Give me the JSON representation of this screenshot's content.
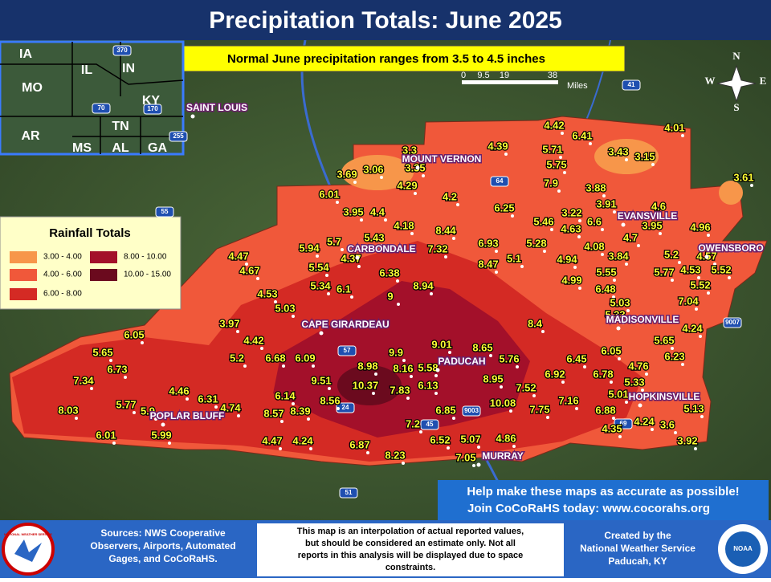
{
  "header": {
    "title": "Precipitation Totals: June 2025",
    "subtitle": "Normal June precipitation  ranges from 3.5 to 4.5 inches"
  },
  "inset_states": [
    "IA",
    "IL",
    "IN",
    "MO",
    "KY",
    "AR",
    "TN",
    "MS",
    "AL",
    "GA"
  ],
  "highways": [
    "370",
    "70",
    "170",
    "255",
    "55",
    "64",
    "57",
    "24",
    "41",
    "9003",
    "9007",
    "45",
    "51",
    "69"
  ],
  "scale_bar": {
    "ticks": [
      "0",
      "9.5",
      "19",
      "38"
    ],
    "unit": "Miles"
  },
  "compass": [
    "N",
    "W",
    "E",
    "S"
  ],
  "legend": {
    "title": "Rainfall Totals",
    "items": [
      {
        "label": "3.00 - 4.00",
        "color": "#f7964a"
      },
      {
        "label": "4.00 - 6.00",
        "color": "#f0583a"
      },
      {
        "label": "6.00 - 8.00",
        "color": "#d42a24"
      },
      {
        "label": "8.00 - 10.00",
        "color": "#a3102a"
      },
      {
        "label": "10.00 - 15.00",
        "color": "#6b0a1e"
      }
    ]
  },
  "cities": [
    "SAINT LOUIS",
    "MOUNT VERNON",
    "EVANSVILLE",
    "OWENSBORO",
    "CARBONDALE",
    "CAPE GIRARDEAU",
    "MADISONVILLE",
    "PADUCAH",
    "HOPKINSVILLE",
    "POPLAR BLUFF",
    "MURRAY"
  ],
  "stations": [
    3.3,
    3.06,
    3.35,
    3.69,
    4.39,
    4.42,
    6.41,
    5.71,
    5.75,
    4.01,
    3.43,
    3.15,
    3.61,
    7.9,
    3.88,
    6.01,
    4.29,
    4.2,
    6.25,
    3.91,
    3.95,
    4.4,
    4.18,
    8.44,
    5.46,
    3.22,
    6.6,
    4.6,
    4.96,
    4.63,
    3.95,
    5.43,
    5.7,
    7.32,
    6.93,
    5.28,
    4.08,
    4.7,
    5.94,
    4.37,
    8.47,
    5.1,
    4.94,
    3.84,
    5.2,
    4.57,
    4.47,
    5.54,
    6.38,
    4.53,
    5.52,
    4.67,
    8.94,
    5.55,
    5.77,
    4.99,
    5.34,
    6.1,
    9,
    6.48,
    5.52,
    4.53,
    5.03,
    7.04,
    5.03,
    5.33,
    4.24,
    3.97,
    4.42,
    8.4,
    6.05,
    9.01,
    8.65,
    5.65,
    5.65,
    6.68,
    6.09,
    5.2,
    9.9,
    5.76,
    6.45,
    6.05,
    6.23,
    6.73,
    8.98,
    8.16,
    5.58,
    6.92,
    6.78,
    4.76,
    7.34,
    9.51,
    10.37,
    7.83,
    6.13,
    8.95,
    7.52,
    5.33,
    4.46,
    6.31,
    6.14,
    8.56,
    10.08,
    7.16,
    5.01,
    8.03,
    5.77,
    5.9,
    4.74,
    8.57,
    8.39,
    7.75,
    6.88,
    6.85,
    5.13,
    4.24,
    3.6,
    7.2,
    4.35,
    6.01,
    5.99,
    4.47,
    4.24,
    6.87,
    6.52,
    5.07,
    4.86,
    3.92,
    8.23,
    7.05
  ],
  "cocorahs": [
    "Help make these maps as accurate as possible!",
    "Join CoCoRaHS today: www.cocorahs.org"
  ],
  "footer": {
    "sources": [
      "Sources: NWS Cooperative",
      "Observers, Airports, Automated",
      "Gages, and CoCoRaHS."
    ],
    "disclaimer": [
      "This map is an interpolation of actual reported values,",
      "but should be considered an estimate only. Not all",
      "reports in this analysis will be displayed due to space",
      "constraints."
    ],
    "credit": [
      "Created by the",
      "National Weather Service",
      "Paducah, KY"
    ],
    "logos": [
      "NATIONAL WEATHER SERVICE",
      "NOAA"
    ]
  }
}
